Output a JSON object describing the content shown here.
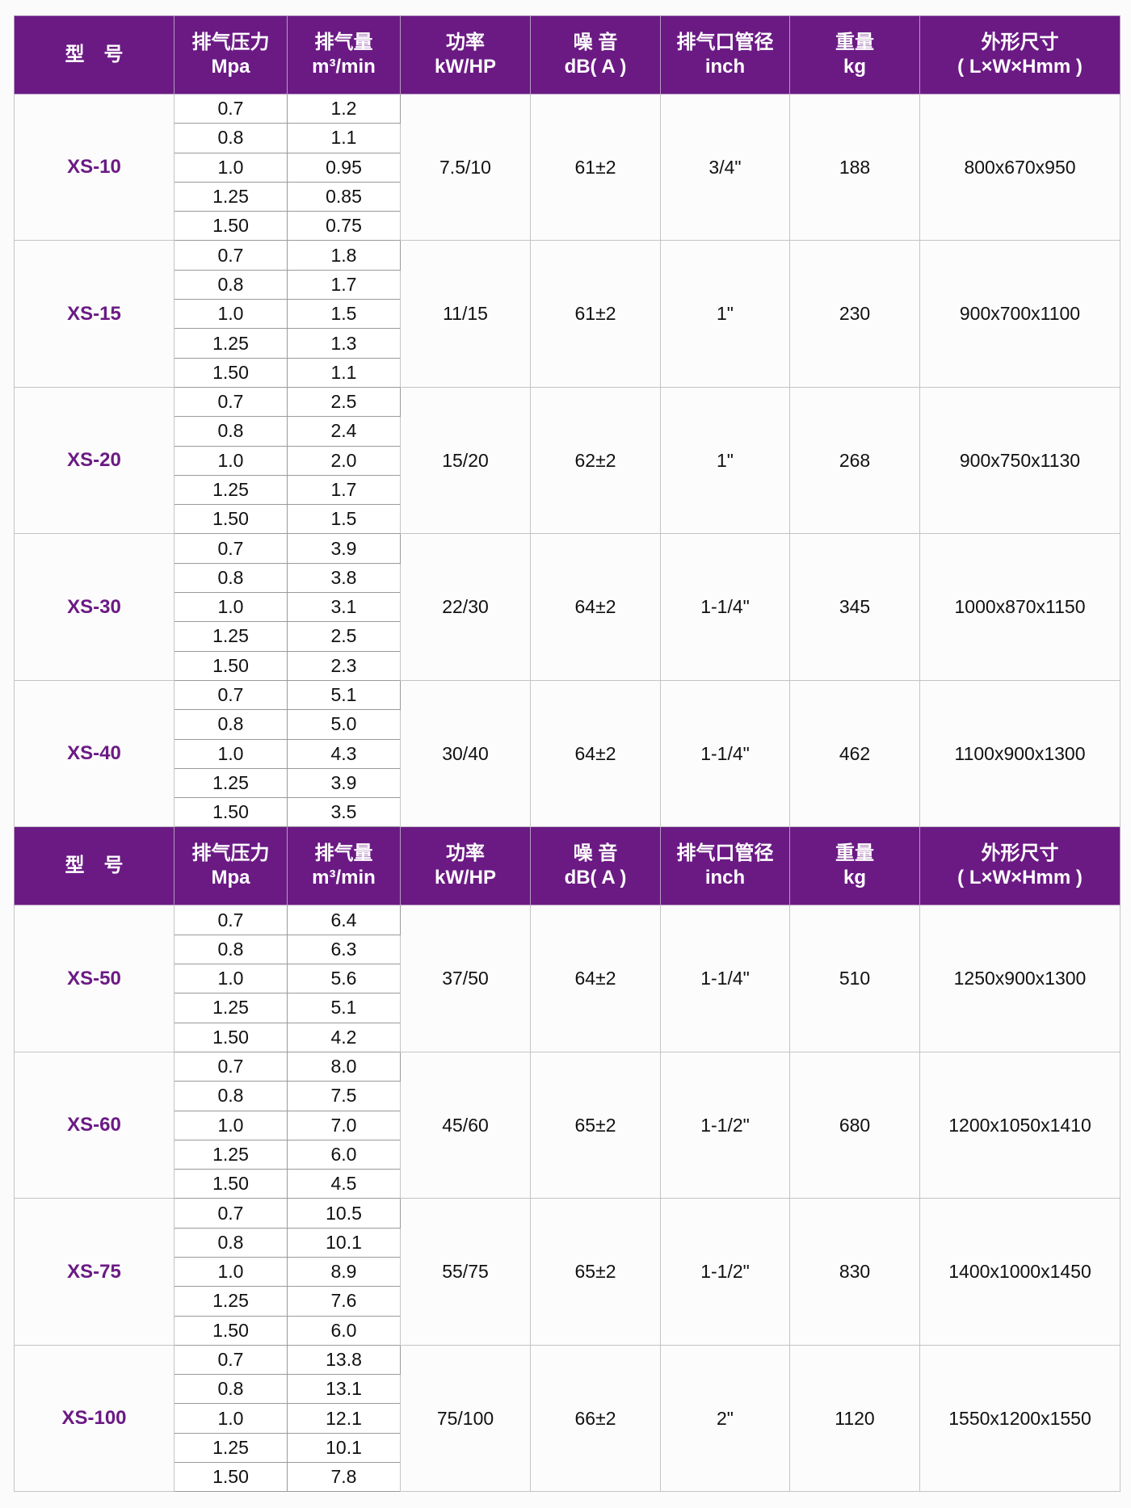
{
  "accent_color": "#6b1a84",
  "headers": [
    {
      "l1": "型　号",
      "l2": ""
    },
    {
      "l1": "排气压力",
      "l2": "Mpa"
    },
    {
      "l1": "排气量",
      "l2": "m³/min"
    },
    {
      "l1": "功率",
      "l2": "kW/HP"
    },
    {
      "l1": "噪 音",
      "l2": "dB( A )"
    },
    {
      "l1": "排气口管径",
      "l2": "inch"
    },
    {
      "l1": "重量",
      "l2": "kg"
    },
    {
      "l1": "外形尺寸",
      "l2": "( L×W×Hmm )"
    }
  ],
  "pressures": [
    "0.7",
    "0.8",
    "1.0",
    "1.25",
    "1.50"
  ],
  "models": [
    {
      "model": "XS-10",
      "flow": [
        "1.2",
        "1.1",
        "0.95",
        "0.85",
        "0.75"
      ],
      "power": "7.5/10",
      "noise": "61±2",
      "outlet": "3/4\"",
      "weight": "188",
      "size": "800x670x950"
    },
    {
      "model": "XS-15",
      "flow": [
        "1.8",
        "1.7",
        "1.5",
        "1.3",
        "1.1"
      ],
      "power": "11/15",
      "noise": "61±2",
      "outlet": "1\"",
      "weight": "230",
      "size": "900x700x1100"
    },
    {
      "model": "XS-20",
      "flow": [
        "2.5",
        "2.4",
        "2.0",
        "1.7",
        "1.5"
      ],
      "power": "15/20",
      "noise": "62±2",
      "outlet": "1\"",
      "weight": "268",
      "size": "900x750x1130"
    },
    {
      "model": "XS-30",
      "flow": [
        "3.9",
        "3.8",
        "3.1",
        "2.5",
        "2.3"
      ],
      "power": "22/30",
      "noise": "64±2",
      "outlet": "1-1/4\"",
      "weight": "345",
      "size": "1000x870x1150"
    },
    {
      "model": "XS-40",
      "flow": [
        "5.1",
        "5.0",
        "4.3",
        "3.9",
        "3.5"
      ],
      "power": "30/40",
      "noise": "64±2",
      "outlet": "1-1/4\"",
      "weight": "462",
      "size": "1100x900x1300"
    },
    {
      "model": "XS-50",
      "flow": [
        "6.4",
        "6.3",
        "5.6",
        "5.1",
        "4.2"
      ],
      "power": "37/50",
      "noise": "64±2",
      "outlet": "1-1/4\"",
      "weight": "510",
      "size": "1250x900x1300"
    },
    {
      "model": "XS-60",
      "flow": [
        "8.0",
        "7.5",
        "7.0",
        "6.0",
        "4.5"
      ],
      "power": "45/60",
      "noise": "65±2",
      "outlet": "1-1/2\"",
      "weight": "680",
      "size": "1200x1050x1410"
    },
    {
      "model": "XS-75",
      "flow": [
        "10.5",
        "10.1",
        "8.9",
        "7.6",
        "6.0"
      ],
      "power": "55/75",
      "noise": "65±2",
      "outlet": "1-1/2\"",
      "weight": "830",
      "size": "1400x1000x1450"
    },
    {
      "model": "XS-100",
      "flow": [
        "13.8",
        "13.1",
        "12.1",
        "10.1",
        "7.8"
      ],
      "power": "75/100",
      "noise": "66±2",
      "outlet": "2\"",
      "weight": "1120",
      "size": "1550x1200x1550"
    }
  ]
}
